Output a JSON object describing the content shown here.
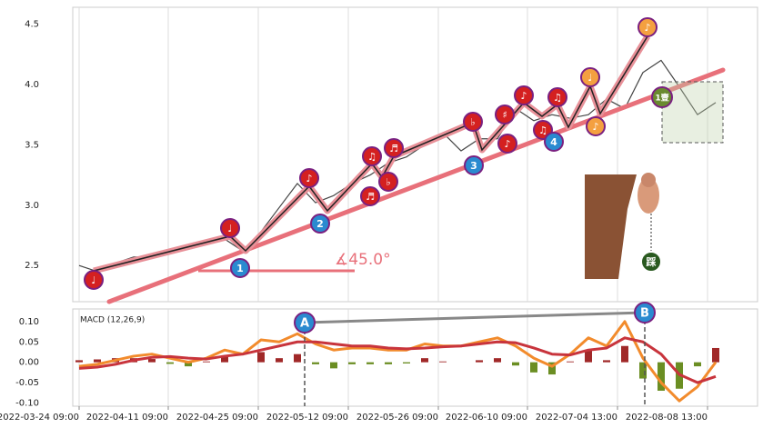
{
  "chart_data": [
    {
      "type": "line",
      "x": [
        0,
        1,
        2,
        3,
        4,
        5,
        6,
        7,
        8,
        9,
        10,
        11,
        12,
        13,
        14,
        15,
        16,
        17,
        18,
        19,
        20,
        21,
        22,
        23,
        24,
        25,
        26,
        27,
        28,
        29,
        30,
        31,
        32,
        33,
        34,
        35
      ],
      "series": [
        {
          "color": "#444444",
          "values": [
            2.5,
            2.45,
            2.52,
            2.57,
            2.57,
            2.62,
            2.65,
            2.68,
            2.72,
            2.62,
            2.78,
            2.98,
            3.18,
            3.02,
            3.08,
            3.18,
            3.25,
            3.35,
            3.4,
            3.5,
            3.6,
            3.45,
            3.55,
            3.55,
            3.8,
            3.7,
            3.75,
            3.72,
            3.75,
            3.88,
            3.8,
            4.1,
            4.2,
            3.98,
            3.75,
            3.85
          ]
        }
      ],
      "xlim": [
        -0.35,
        37.3
      ],
      "ylim": [
        2.2,
        4.64
      ],
      "yticks": [
        {
          "value": 2.5,
          "label": "2.5"
        },
        {
          "value": 3.0,
          "label": "3.0"
        },
        {
          "value": 3.5,
          "label": "3.5"
        },
        {
          "value": 4.0,
          "label": "4.0"
        },
        {
          "value": 4.5,
          "label": "4.5"
        }
      ],
      "grid": true,
      "annotations": {
        "notes": [
          "♩",
          "♩",
          "♪",
          "♫",
          "♬",
          "♬",
          "♭",
          "♭",
          "♯",
          "♪",
          "♪",
          "♫",
          "♫",
          "♩",
          "♪",
          "♪"
        ],
        "waves": [
          "1",
          "2",
          "3",
          "4"
        ],
        "angle": "∡45.0°",
        "marker": "1壹",
        "step": "踩"
      }
    },
    {
      "type": "macd",
      "title": "MACD (12,26,9)",
      "x": [
        0,
        1,
        2,
        3,
        4,
        5,
        6,
        7,
        8,
        9,
        10,
        11,
        12,
        13,
        14,
        15,
        16,
        17,
        18,
        19,
        20,
        21,
        22,
        23,
        24,
        25,
        26,
        27,
        28,
        29,
        30,
        31,
        32,
        33,
        34,
        35
      ],
      "series": [
        {
          "color": "#f28b2c",
          "values": [
            -0.01,
            -0.005,
            0.005,
            0.015,
            0.02,
            0.01,
            0.0,
            0.01,
            0.03,
            0.02,
            0.055,
            0.05,
            0.07,
            0.045,
            0.03,
            0.035,
            0.035,
            0.03,
            0.03,
            0.045,
            0.04,
            0.04,
            0.05,
            0.06,
            0.04,
            0.01,
            -0.01,
            0.02,
            0.06,
            0.04,
            0.1,
            0.01,
            -0.05,
            -0.095,
            -0.06,
            0.0
          ]
        },
        {
          "color": "#c8343c",
          "values": [
            -0.015,
            -0.012,
            -0.005,
            0.005,
            0.012,
            0.014,
            0.01,
            0.008,
            0.015,
            0.02,
            0.03,
            0.04,
            0.05,
            0.05,
            0.045,
            0.04,
            0.04,
            0.035,
            0.033,
            0.035,
            0.038,
            0.04,
            0.045,
            0.05,
            0.048,
            0.035,
            0.02,
            0.018,
            0.03,
            0.035,
            0.06,
            0.05,
            0.02,
            -0.03,
            -0.05,
            -0.035
          ]
        }
      ],
      "histogram": {
        "colors": [
          "#a02828",
          "#6b8e23"
        ],
        "values": [
          0.005,
          0.007,
          0.01,
          0.01,
          0.008,
          -0.004,
          -0.01,
          0.002,
          0.015,
          0.0,
          0.025,
          0.01,
          0.02,
          -0.005,
          -0.015,
          -0.005,
          -0.005,
          -0.005,
          -0.003,
          0.01,
          0.002,
          0.0,
          0.005,
          0.01,
          -0.008,
          -0.025,
          -0.03,
          0.002,
          0.03,
          0.005,
          0.04,
          -0.04,
          -0.07,
          -0.065,
          -0.01,
          0.035
        ]
      },
      "xlim": [
        -0.35,
        37.3
      ],
      "ylim": [
        -0.108,
        0.131
      ],
      "yticks": [
        {
          "value": -0.1,
          "label": "-0.10"
        },
        {
          "value": -0.05,
          "label": "-0.05"
        },
        {
          "value": 0,
          "label": "0.00"
        },
        {
          "value": 0.05,
          "label": "0.05"
        },
        {
          "value": 0.1,
          "label": "0.10"
        }
      ],
      "xticks": [
        {
          "value": 0,
          "label": "2022-03-24 09:00"
        },
        {
          "value": 4.9,
          "label": "2022-04-11 09:00"
        },
        {
          "value": 9.85,
          "label": "2022-04-25 09:00"
        },
        {
          "value": 14.8,
          "label": "2022-05-12 09:00"
        },
        {
          "value": 19.75,
          "label": "2022-05-26 09:00"
        },
        {
          "value": 24.65,
          "label": "2022-06-10 09:00"
        },
        {
          "value": 29.6,
          "label": "2022-07-04 13:00"
        },
        {
          "value": 34.55,
          "label": "2022-08-08 13:00"
        }
      ],
      "grid": true,
      "points": [
        "A",
        "B"
      ]
    }
  ]
}
